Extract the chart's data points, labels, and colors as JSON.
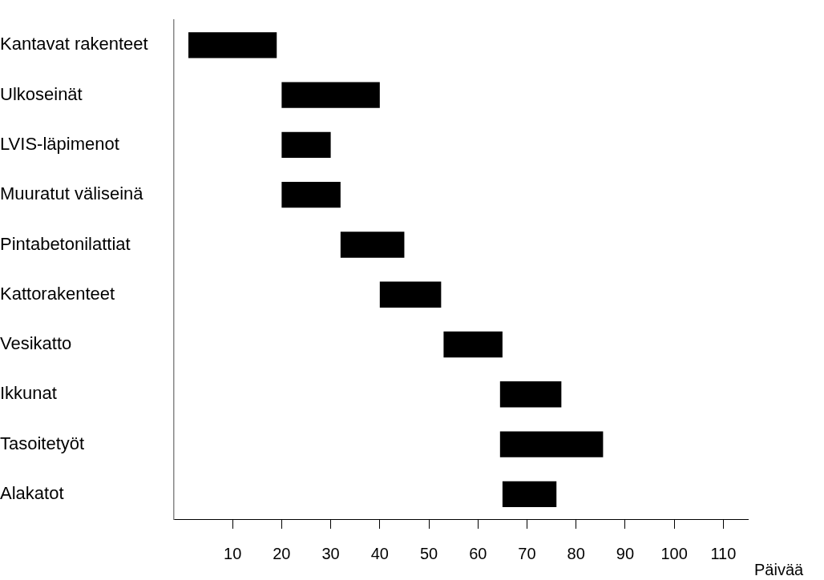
{
  "chart_data": {
    "type": "bar",
    "orientation": "horizontal",
    "categories": [
      "Kantavat rakenteet",
      "Ulkoseinät",
      "LVIS-läpimenot",
      "Muuratut väliseinä",
      "Pintabetonilattiat",
      "Kattorakenteet",
      "Vesikatto",
      "Ikkunat",
      "Tasoitetyöt",
      "Alakatot"
    ],
    "base": [
      1,
      20,
      20,
      20,
      32,
      40,
      53,
      64.5,
      64.5,
      65
    ],
    "values": [
      18,
      20,
      10,
      12,
      13,
      12.5,
      12,
      12.5,
      21,
      11
    ],
    "color": "#000000",
    "xlabel": "Päivää",
    "xlim": [
      -2,
      115
    ],
    "xticks": [
      10,
      20,
      30,
      40,
      50,
      60,
      70,
      80,
      90,
      100,
      110
    ],
    "grid": false
  }
}
